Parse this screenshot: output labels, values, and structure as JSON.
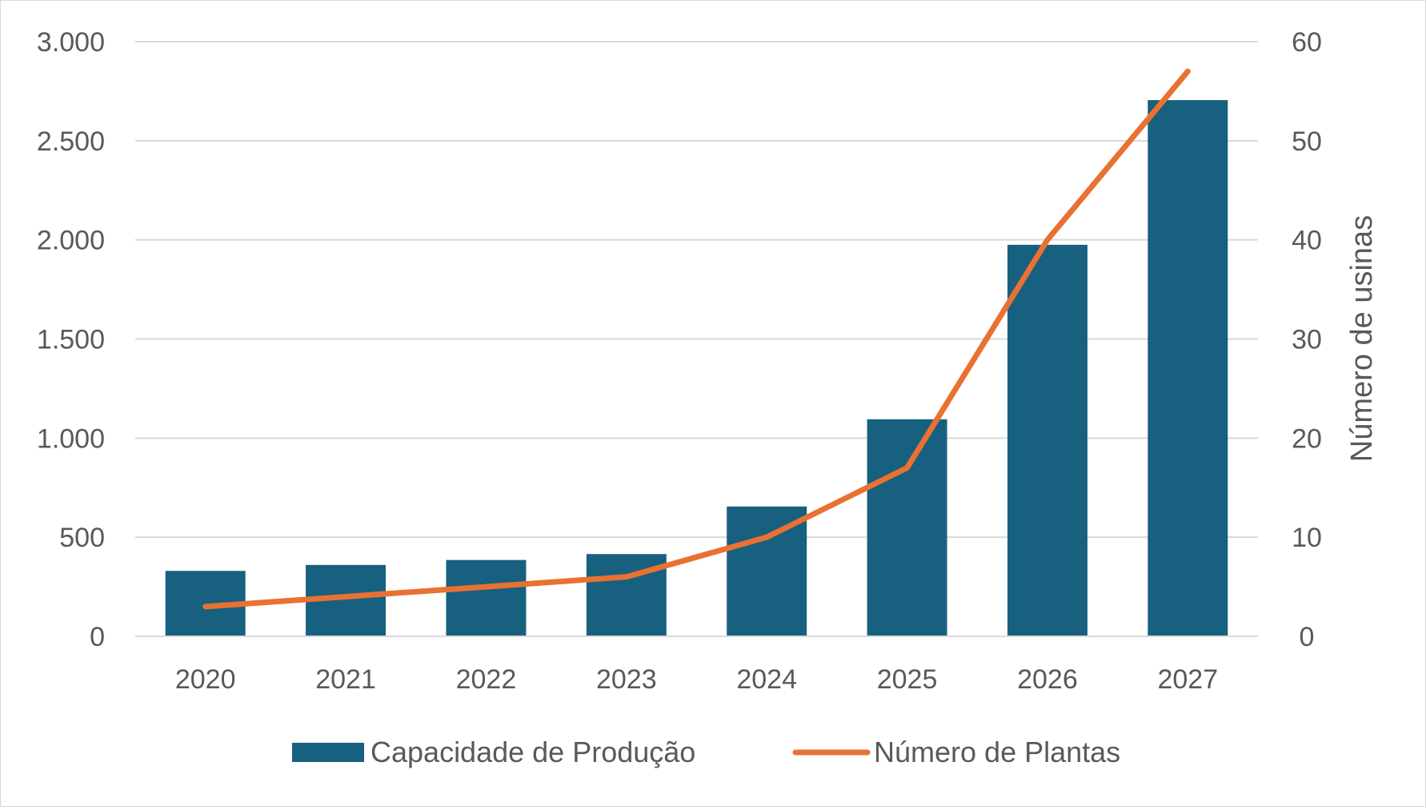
{
  "chart_data": {
    "type": "bar",
    "title": "",
    "categories": [
      "2020",
      "2021",
      "2022",
      "2023",
      "2024",
      "2025",
      "2026",
      "2027"
    ],
    "series": [
      {
        "name": "Capacidade de Produção",
        "type": "bar",
        "axis": "left",
        "color": "#17607f",
        "values": [
          330,
          360,
          385,
          415,
          655,
          1095,
          1975,
          2705
        ]
      },
      {
        "name": "Número de Plantas",
        "type": "line",
        "axis": "right",
        "color": "#e97132",
        "values": [
          3,
          4,
          5,
          6,
          10,
          17,
          40,
          57
        ]
      }
    ],
    "xlabel": "",
    "ylabel": "",
    "y2label": "Número de usinas",
    "ylim": [
      0,
      3000
    ],
    "y2lim": [
      0,
      60
    ],
    "yticks": [
      0,
      500,
      1000,
      1500,
      2000,
      2500,
      3000
    ],
    "yticklabels": [
      "0",
      "500",
      "1.000",
      "1.500",
      "2.000",
      "2.500",
      "3.000"
    ],
    "y2ticks": [
      0,
      10,
      20,
      30,
      40,
      50,
      60
    ],
    "y2ticklabels": [
      "0",
      "10",
      "20",
      "30",
      "40",
      "50",
      "60"
    ],
    "grid": true,
    "legend": "bottom",
    "gridColor": "#d9d9d9"
  }
}
